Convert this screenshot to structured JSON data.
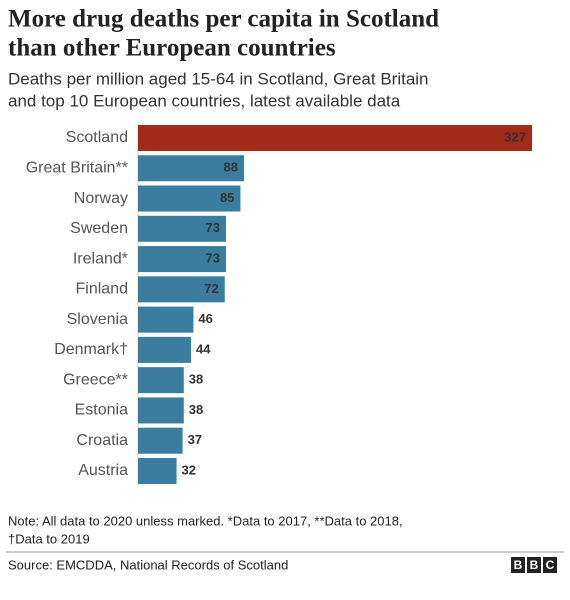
{
  "chart_data": {
    "type": "bar",
    "orientation": "horizontal",
    "title": [
      "More drug deaths per capita in Scotland",
      "than other European countries"
    ],
    "subtitle": [
      "Deaths per million aged 15-64 in Scotland, Great Britain",
      "and top 10 European countries, latest available data"
    ],
    "categories": [
      "Scotland",
      "Great Britain**",
      "Norway",
      "Sweden",
      "Ireland*",
      "Finland",
      "Slovenia",
      "Denmark†",
      "Greece**",
      "Estonia",
      "Croatia",
      "Austria"
    ],
    "values": [
      327,
      88,
      85,
      73,
      73,
      72,
      46,
      44,
      38,
      38,
      37,
      32
    ],
    "colors": [
      "#a12a19",
      "#3a7d9e",
      "#3a7d9e",
      "#3a7d9e",
      "#3a7d9e",
      "#3a7d9e",
      "#3a7d9e",
      "#3a7d9e",
      "#3a7d9e",
      "#3a7d9e",
      "#3a7d9e",
      "#3a7d9e"
    ],
    "note": [
      "Note: All data to 2020 unless marked. *Data to 2017, **Data to 2018,",
      "†Data to 2019"
    ],
    "source": "Source: EMCDDA, National Records of Scotland",
    "logo": [
      "B",
      "B",
      "C"
    ]
  }
}
